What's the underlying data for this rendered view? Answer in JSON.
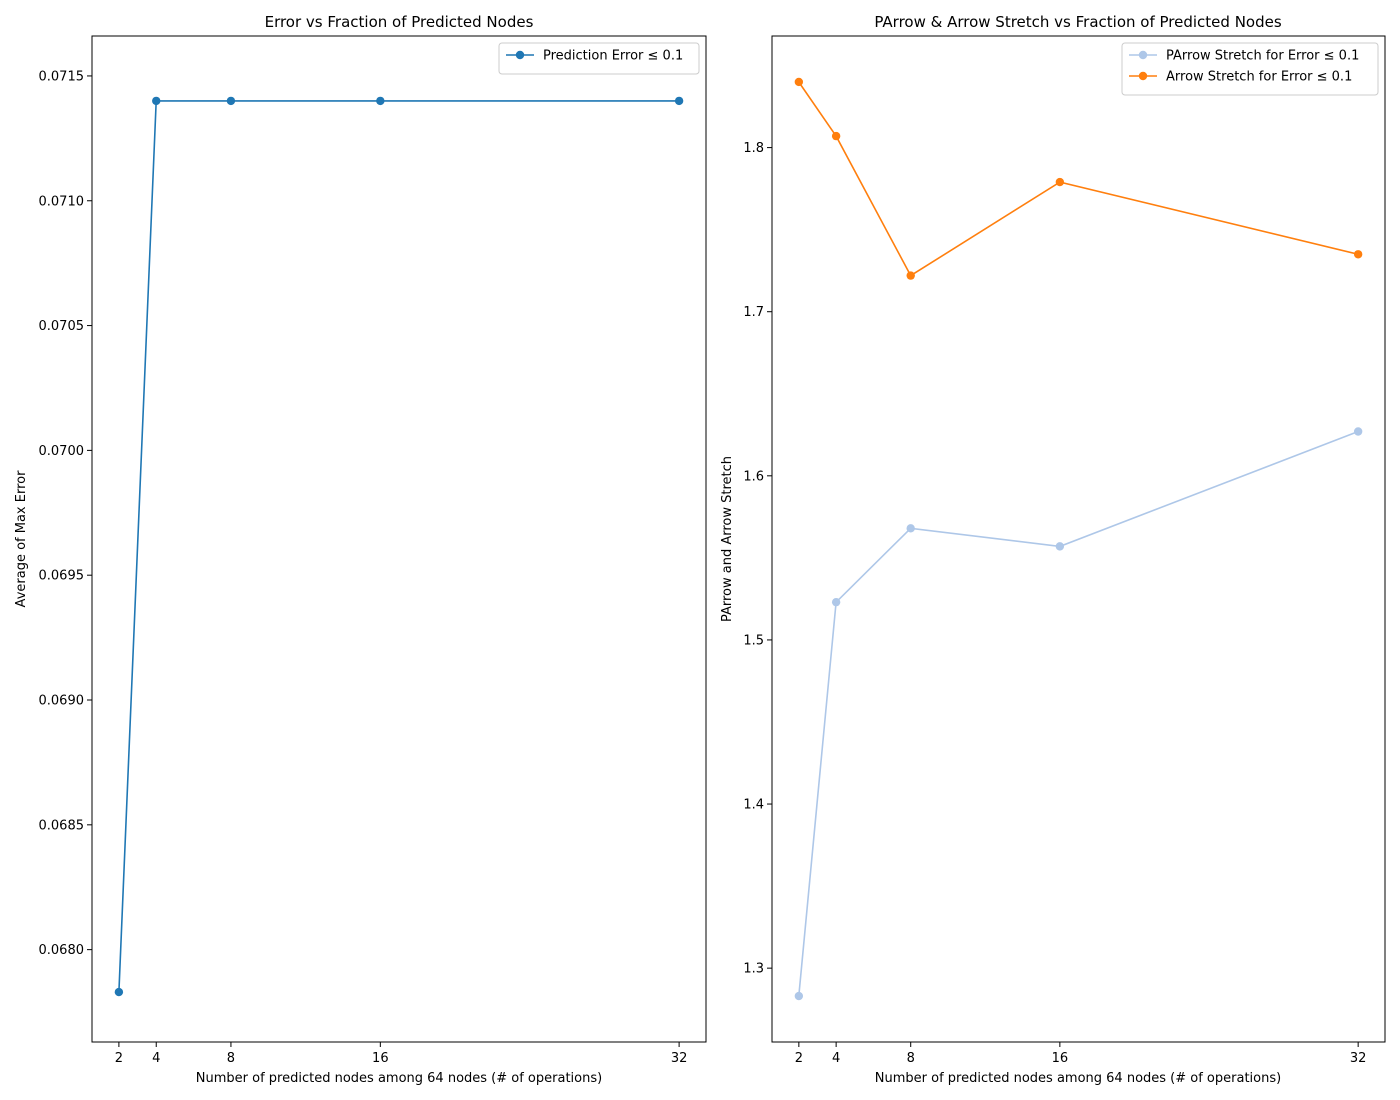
{
  "chart_data": [
    {
      "type": "line",
      "title": "Error vs Fraction of Predicted Nodes",
      "xlabel": "Number of predicted nodes among 64 nodes (# of operations)",
      "ylabel": "Average of Max Error",
      "x": [
        2,
        4,
        8,
        16,
        32
      ],
      "xticks": [
        "2",
        "4",
        "8",
        "16",
        "32"
      ],
      "ylim": [
        0.06763,
        0.07166
      ],
      "yticks": [
        "0.0680",
        "0.0685",
        "0.0690",
        "0.0695",
        "0.0700",
        "0.0705",
        "0.0710",
        "0.0715"
      ],
      "grid": false,
      "legend_position": "top-right",
      "series": [
        {
          "name": "Prediction Error ≤ 0.1",
          "color": "#1f77b4",
          "values": [
            0.06783,
            0.0714,
            0.0714,
            0.0714,
            0.0714
          ]
        }
      ]
    },
    {
      "type": "line",
      "title": "PArrow & Arrow Stretch vs Fraction of Predicted Nodes",
      "xlabel": "Number of predicted nodes among 64 nodes (# of operations)",
      "ylabel": "PArrow and Arrow Stretch",
      "x": [
        2,
        4,
        8,
        16,
        32
      ],
      "xticks": [
        "2",
        "4",
        "8",
        "16",
        "32"
      ],
      "ylim": [
        1.255,
        1.868
      ],
      "yticks": [
        "1.3",
        "1.4",
        "1.5",
        "1.6",
        "1.7",
        "1.8"
      ],
      "grid": false,
      "legend_position": "top-right",
      "series": [
        {
          "name": "PArrow Stretch for Error ≤ 0.1",
          "color": "#aec7e8",
          "values": [
            1.283,
            1.523,
            1.568,
            1.557,
            1.627
          ]
        },
        {
          "name": "Arrow Stretch for Error ≤ 0.1",
          "color": "#ff7f0e",
          "values": [
            1.84,
            1.807,
            1.722,
            1.779,
            1.735
          ]
        }
      ]
    }
  ]
}
